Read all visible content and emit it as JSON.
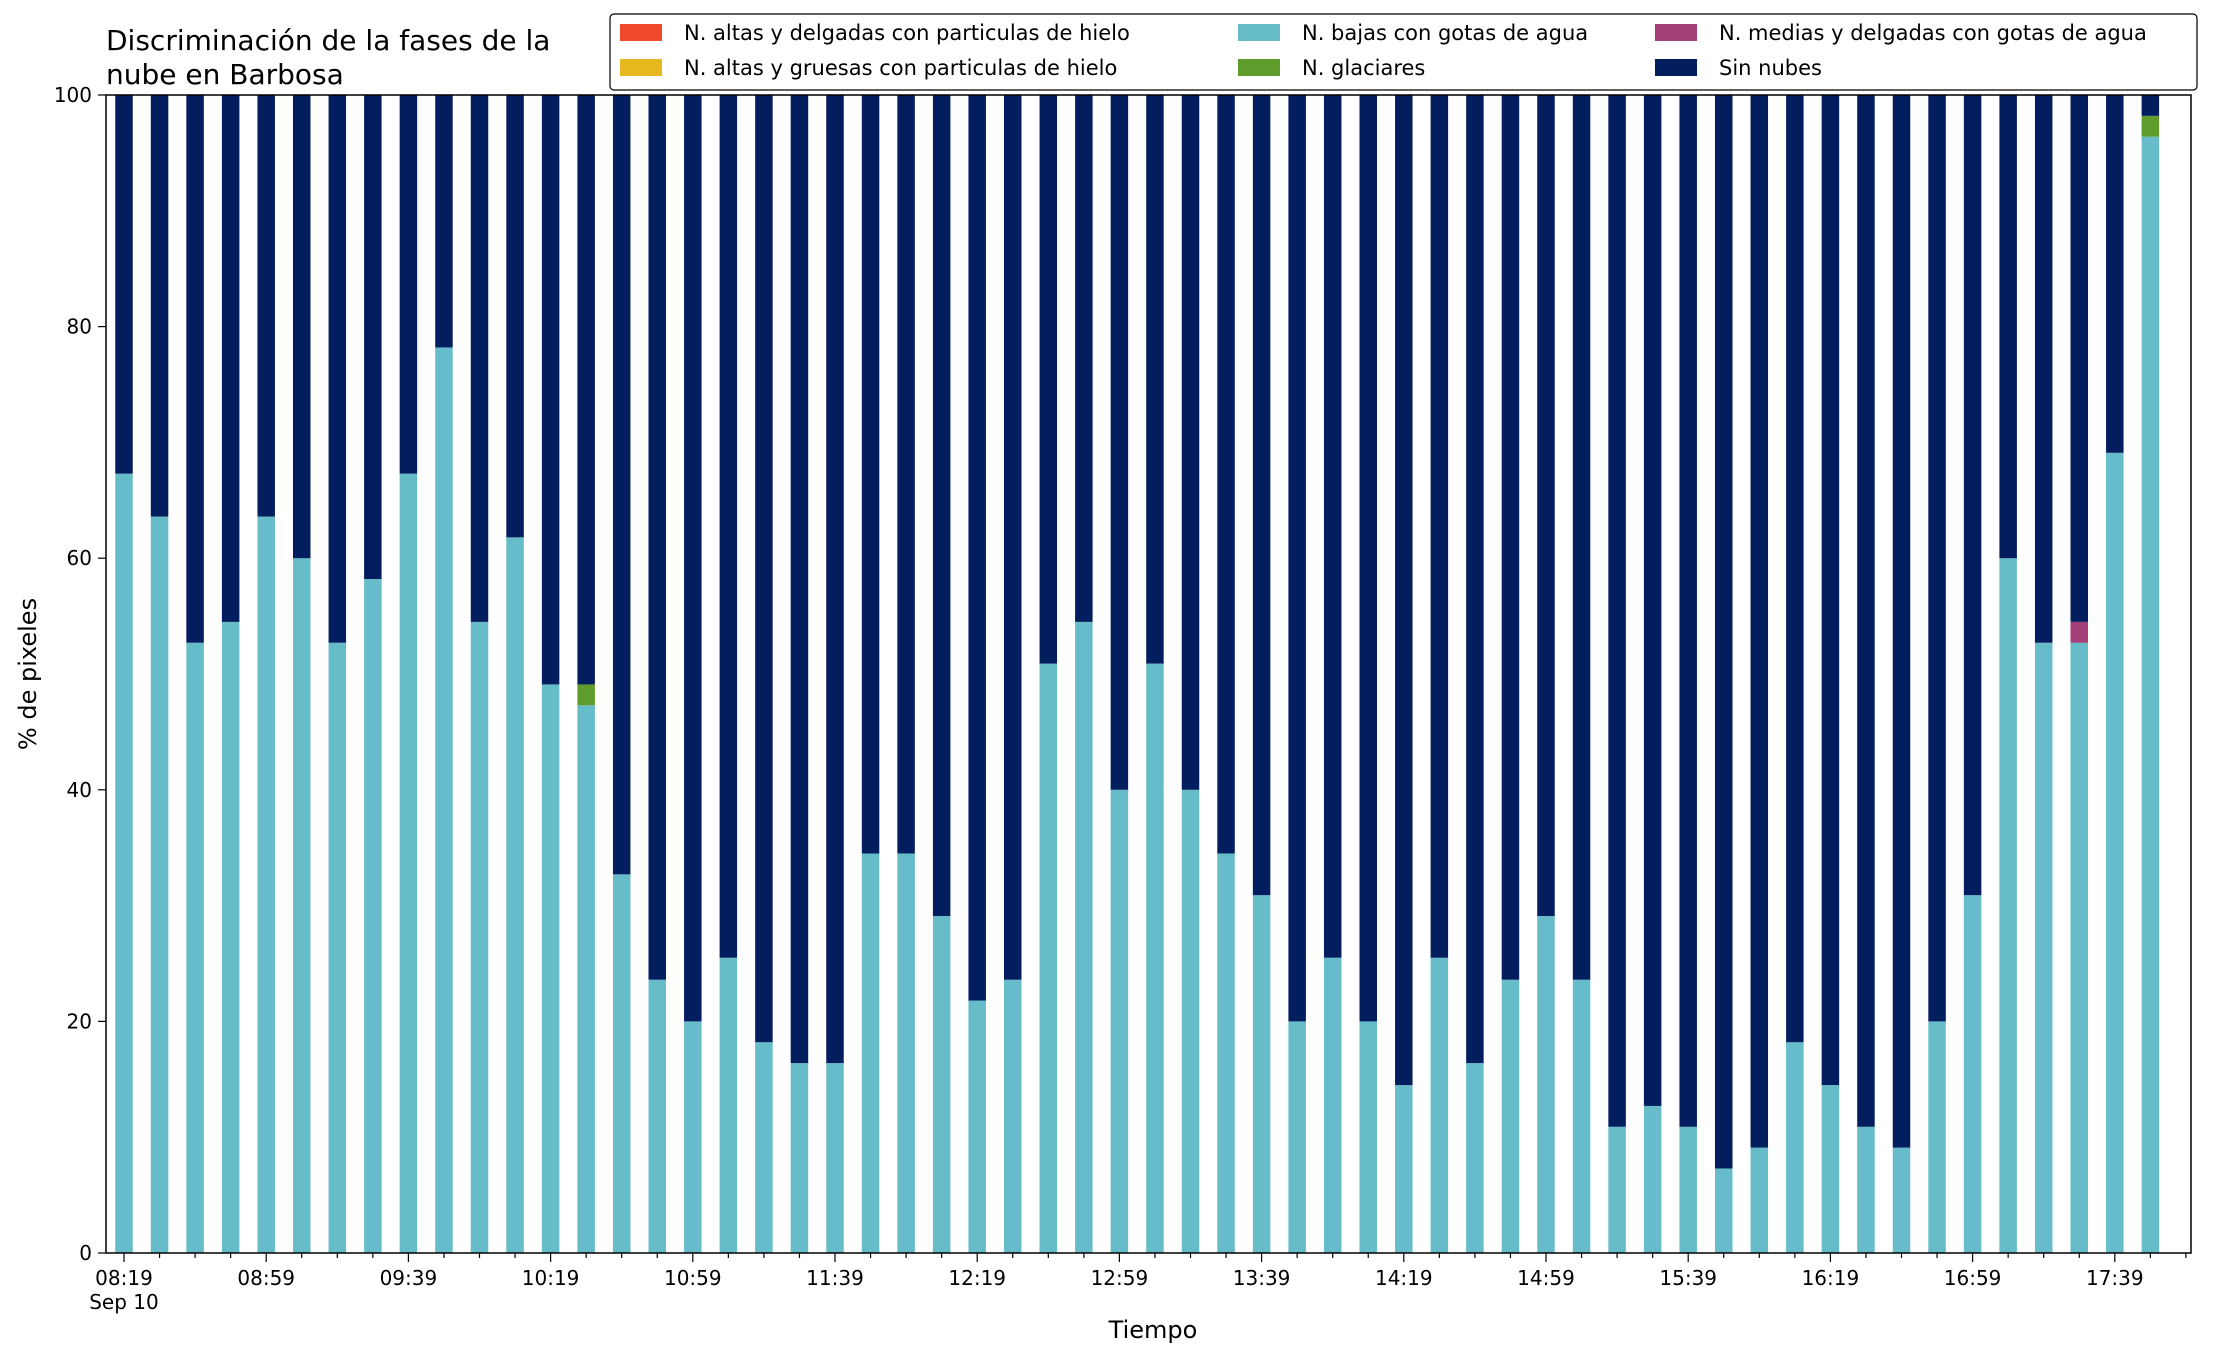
{
  "chart_data": {
    "type": "bar",
    "stacked": true,
    "title_lines": [
      "Discriminación de la fases de la",
      "nube en Barbosa"
    ],
    "xlabel": "Tiempo",
    "ylabel": "% de pixeles",
    "ylim": [
      0,
      100
    ],
    "yticks": [
      0,
      20,
      40,
      60,
      80,
      100
    ],
    "xtick_labels": [
      "08:19",
      "08:59",
      "09:39",
      "10:19",
      "10:59",
      "11:39",
      "12:19",
      "12:59",
      "13:39",
      "14:19",
      "14:59",
      "15:39",
      "16:19",
      "16:59",
      "17:39"
    ],
    "xtick_sublabel": "Sep 10",
    "legend_position": "top-right",
    "legend_columns": 3,
    "grid": false,
    "categories": [
      "08:19",
      "08:29",
      "08:39",
      "08:49",
      "08:59",
      "09:09",
      "09:19",
      "09:29",
      "09:39",
      "09:49",
      "09:59",
      "10:09",
      "10:19",
      "10:29",
      "10:39",
      "10:49",
      "10:59",
      "11:09",
      "11:19",
      "11:29",
      "11:39",
      "11:49",
      "11:59",
      "12:09",
      "12:19",
      "12:29",
      "12:39",
      "12:49",
      "12:59",
      "13:09",
      "13:19",
      "13:29",
      "13:39",
      "13:49",
      "13:59",
      "14:09",
      "14:19",
      "14:29",
      "14:39",
      "14:49",
      "14:59",
      "15:09",
      "15:19",
      "15:29",
      "15:39",
      "15:49",
      "15:59",
      "16:09",
      "16:19",
      "16:29",
      "16:39",
      "16:49",
      "16:59",
      "17:09",
      "17:19",
      "17:29",
      "17:39",
      "17:49"
    ],
    "series": [
      {
        "name": "N. altas y delgadas con particulas de hielo",
        "color": "#ef4a2b",
        "values": [
          0,
          0,
          0,
          0,
          0,
          0,
          0,
          0,
          0,
          0,
          0,
          0,
          0,
          0,
          0,
          0,
          0,
          0,
          0,
          0,
          0,
          0,
          0,
          0,
          0,
          0,
          0,
          0,
          0,
          0,
          0,
          0,
          0,
          0,
          0,
          0,
          0,
          0,
          0,
          0,
          0,
          0,
          0,
          0,
          0,
          0,
          0,
          0,
          0,
          0,
          0,
          0,
          0,
          0,
          0,
          0,
          0,
          0
        ]
      },
      {
        "name": "N. altas y gruesas con particulas de hielo",
        "color": "#e6b91e",
        "values": [
          0,
          0,
          0,
          0,
          0,
          0,
          0,
          0,
          0,
          0,
          0,
          0,
          0,
          0,
          0,
          0,
          0,
          0,
          0,
          0,
          0,
          0,
          0,
          0,
          0,
          0,
          0,
          0,
          0,
          0,
          0,
          0,
          0,
          0,
          0,
          0,
          0,
          0,
          0,
          0,
          0,
          0,
          0,
          0,
          0,
          0,
          0,
          0,
          0,
          0,
          0,
          0,
          0,
          0,
          0,
          0,
          0,
          0
        ]
      },
      {
        "name": "N. bajas con gotas de agua",
        "color": "#66bdc9",
        "values": [
          67.3,
          63.6,
          52.7,
          54.5,
          63.6,
          60.0,
          52.7,
          58.2,
          67.3,
          78.2,
          54.5,
          61.8,
          49.1,
          47.3,
          32.7,
          23.6,
          20.0,
          25.5,
          18.2,
          16.4,
          16.4,
          34.5,
          34.5,
          29.1,
          21.8,
          23.6,
          50.9,
          54.5,
          40.0,
          50.9,
          40.0,
          34.5,
          30.9,
          20.0,
          25.5,
          20.0,
          14.5,
          25.5,
          16.4,
          23.6,
          29.1,
          23.6,
          10.9,
          12.7,
          10.9,
          7.3,
          9.1,
          18.2,
          14.5,
          10.9,
          9.1,
          20.0,
          30.9,
          60.0,
          52.7,
          52.7,
          69.1,
          96.4
        ]
      },
      {
        "name": "N. glaciares",
        "color": "#5e9d2b",
        "values": [
          0,
          0,
          0,
          0,
          0,
          0,
          0,
          0,
          0,
          0,
          0,
          0,
          0,
          1.8,
          0,
          0,
          0,
          0,
          0,
          0,
          0,
          0,
          0,
          0,
          0,
          0,
          0,
          0,
          0,
          0,
          0,
          0,
          0,
          0,
          0,
          0,
          0,
          0,
          0,
          0,
          0,
          0,
          0,
          0,
          0,
          0,
          0,
          0,
          0,
          0,
          0,
          0,
          0,
          0,
          0,
          0,
          0,
          1.8
        ]
      },
      {
        "name": "N. medias y delgadas con gotas de agua",
        "color": "#a5417a",
        "values": [
          0,
          0,
          0,
          0,
          0,
          0,
          0,
          0,
          0,
          0,
          0,
          0,
          0,
          0,
          0,
          0,
          0,
          0,
          0,
          0,
          0,
          0,
          0,
          0,
          0,
          0,
          0,
          0,
          0,
          0,
          0,
          0,
          0,
          0,
          0,
          0,
          0,
          0,
          0,
          0,
          0,
          0,
          0,
          0,
          0,
          0,
          0,
          0,
          0,
          0,
          0,
          0,
          0,
          0,
          0,
          1.8,
          0,
          0
        ]
      },
      {
        "name": "Sin nubes",
        "color": "#031e5e",
        "values": [
          32.7,
          36.4,
          47.3,
          45.5,
          36.4,
          40.0,
          47.3,
          41.8,
          32.7,
          21.8,
          45.5,
          38.2,
          50.9,
          50.9,
          67.3,
          76.4,
          80.0,
          74.5,
          81.8,
          83.6,
          83.6,
          65.5,
          65.5,
          70.9,
          78.2,
          76.4,
          49.1,
          45.5,
          60.0,
          49.1,
          60.0,
          65.5,
          69.1,
          80.0,
          74.5,
          80.0,
          85.5,
          74.5,
          83.6,
          76.4,
          70.9,
          76.4,
          89.1,
          87.3,
          89.1,
          92.7,
          90.9,
          81.8,
          85.5,
          89.1,
          90.9,
          80.0,
          69.1,
          40.0,
          47.3,
          45.5,
          30.9,
          1.8
        ]
      }
    ],
    "legend_order": [
      0,
      1,
      2,
      3,
      4,
      5
    ]
  }
}
